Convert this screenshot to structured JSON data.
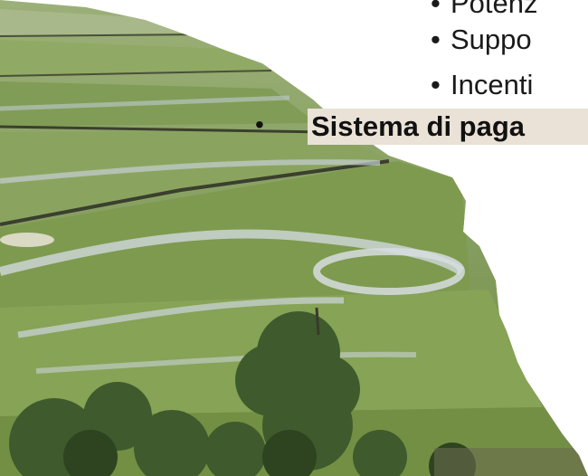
{
  "slide": {
    "bullets": [
      {
        "text": "Potenz"
      },
      {
        "text": "Suppo"
      },
      {
        "text": "Incenti"
      }
    ],
    "main_bullet": "Sistema di paga",
    "bullet_glyph": "•",
    "photo": "terraced-rice-field-photo"
  },
  "colors": {
    "highlight": "#eae2d7",
    "grass": "#7f9a55",
    "water": "#c9d3d8",
    "tree": "#3f5a2c"
  }
}
